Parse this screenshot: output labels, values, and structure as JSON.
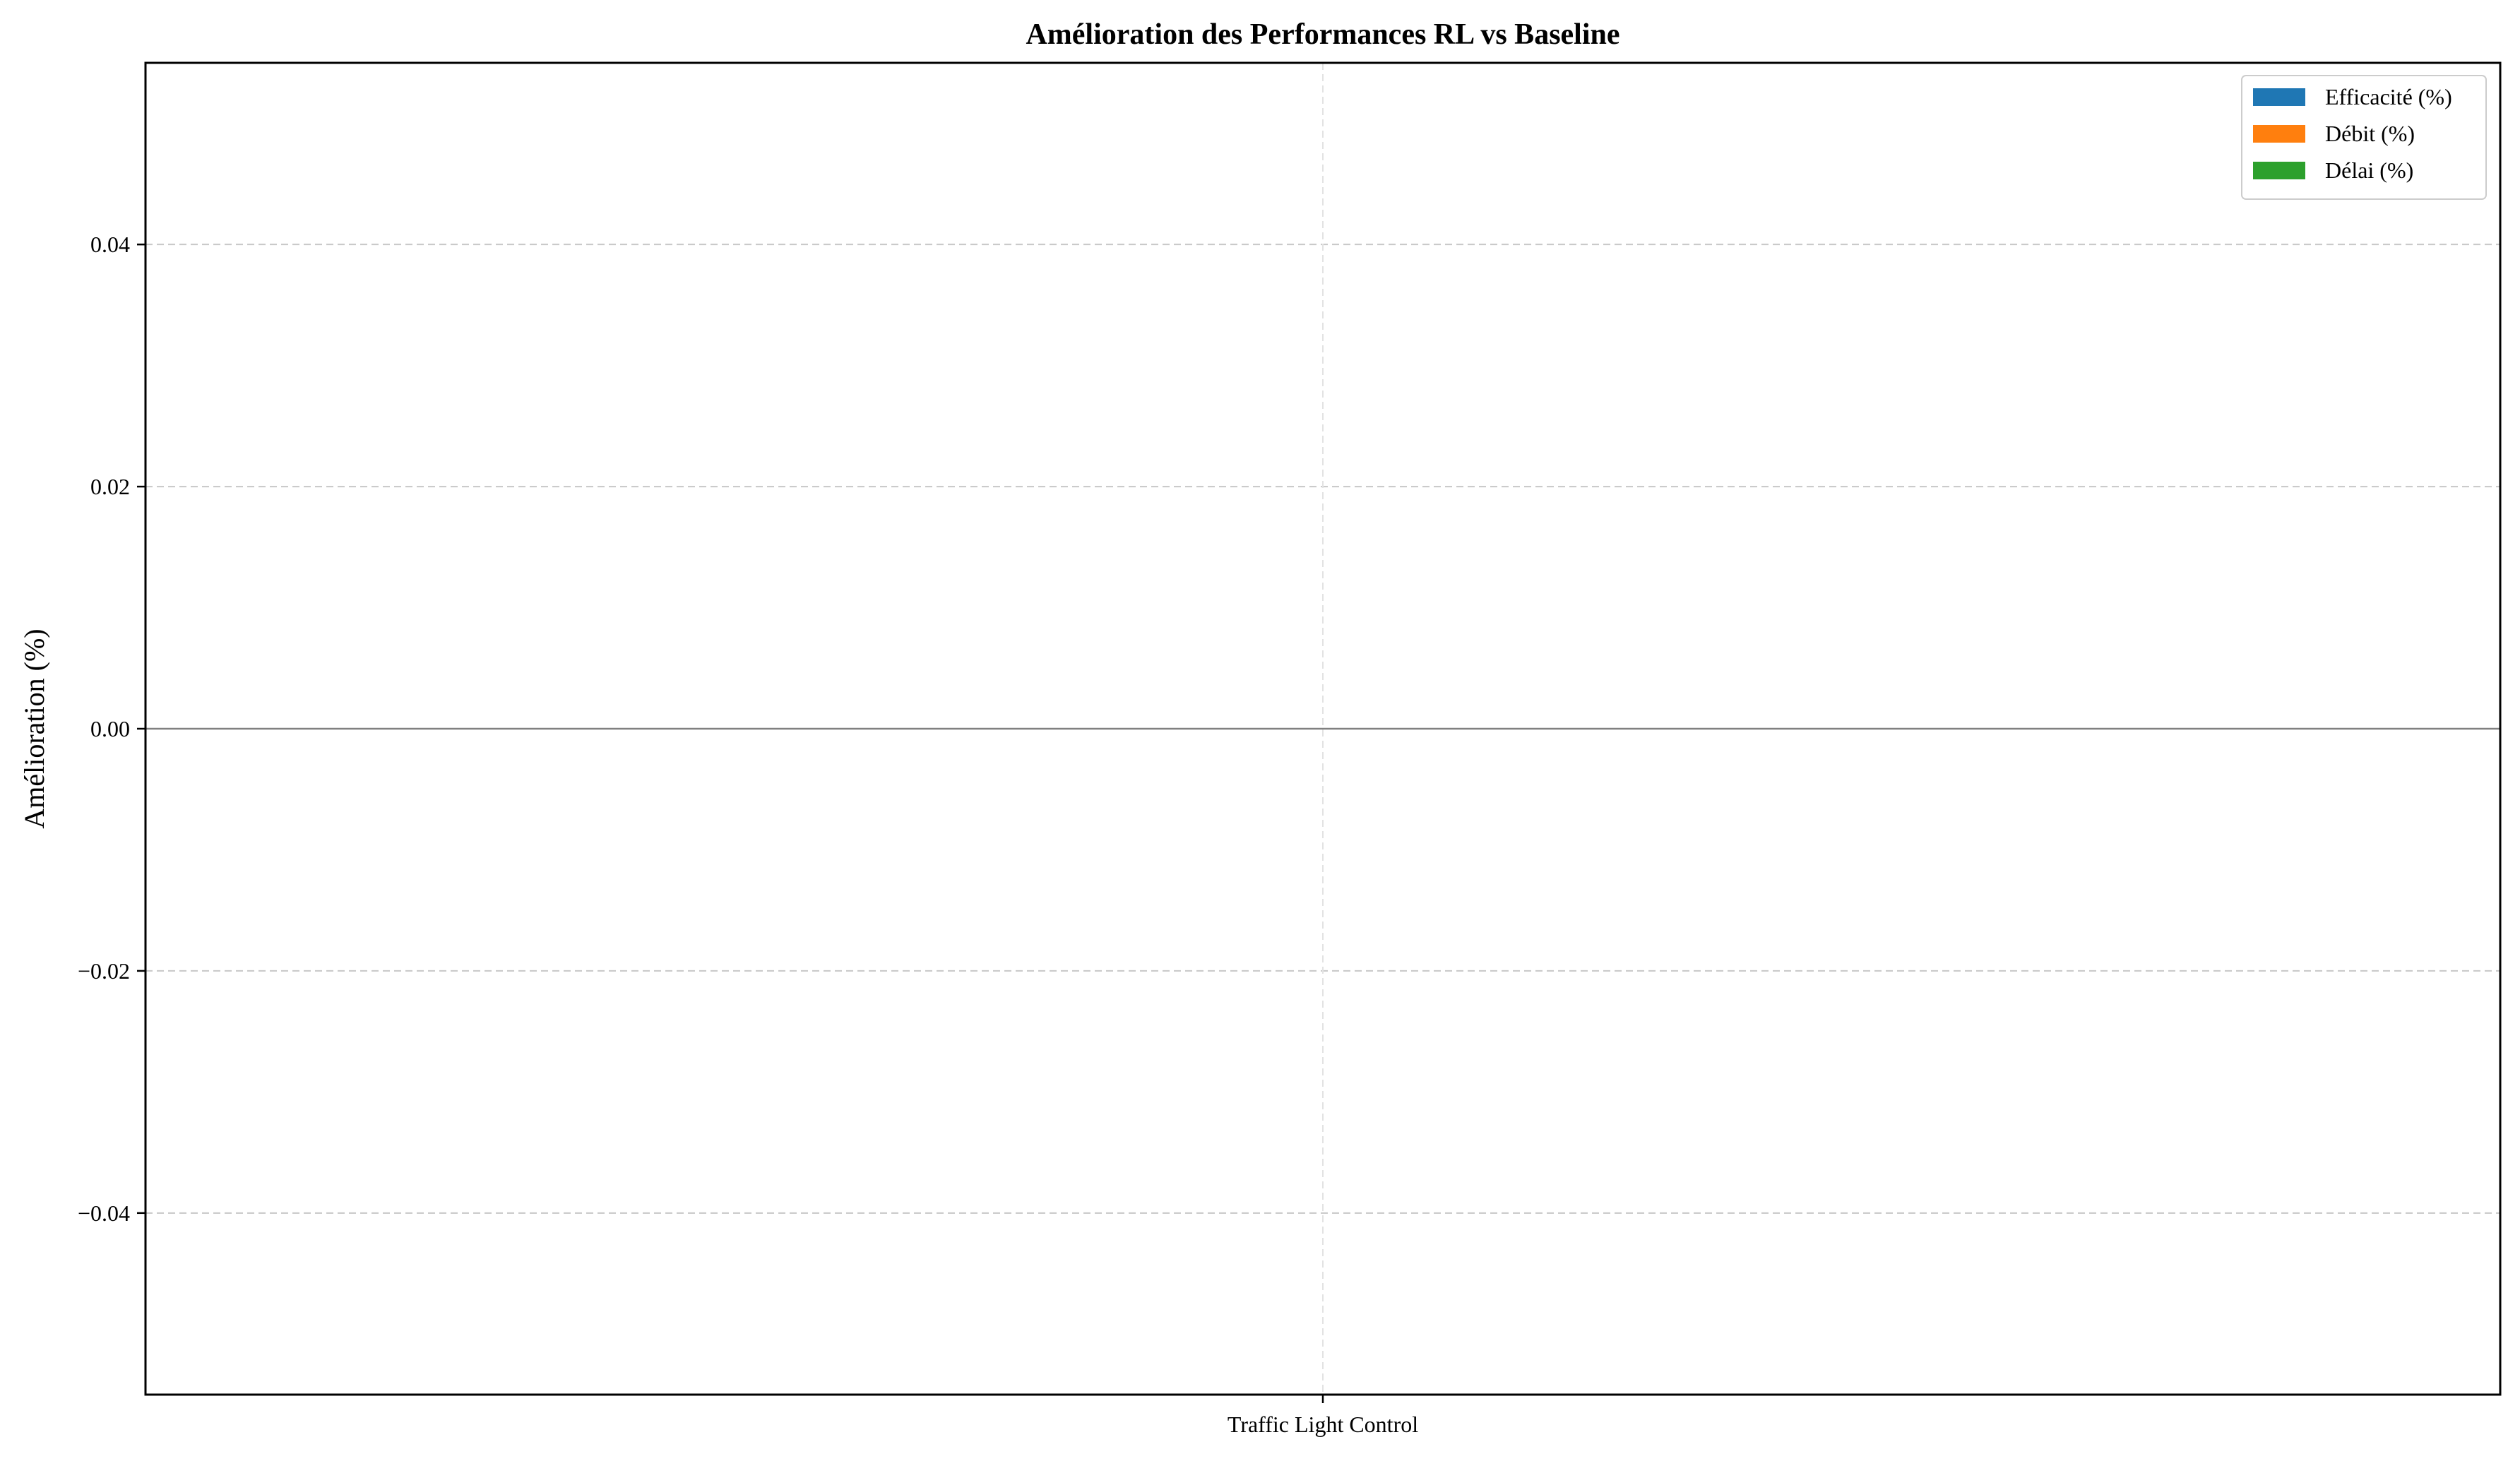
{
  "chart_data": {
    "type": "bar",
    "title": "Amélioration des Performances RL vs Baseline",
    "xlabel": "",
    "ylabel": "Amélioration (%)",
    "categories": [
      "Traffic Light Control"
    ],
    "series": [
      {
        "name": "Efficacité (%)",
        "values": [
          0
        ],
        "color": "#1f77b4"
      },
      {
        "name": "Débit (%)",
        "values": [
          0
        ],
        "color": "#ff7f0e"
      },
      {
        "name": "Délai (%)",
        "values": [
          0
        ],
        "color": "#2ca02c"
      }
    ],
    "ylim": [
      -0.055,
      0.055
    ],
    "yticks": [
      -0.04,
      -0.02,
      0.0,
      0.02,
      0.04
    ],
    "ytick_labels": [
      "−0.04",
      "−0.02",
      "0.00",
      "0.02",
      "0.04"
    ],
    "grid": true,
    "legend_position": "top-right"
  }
}
